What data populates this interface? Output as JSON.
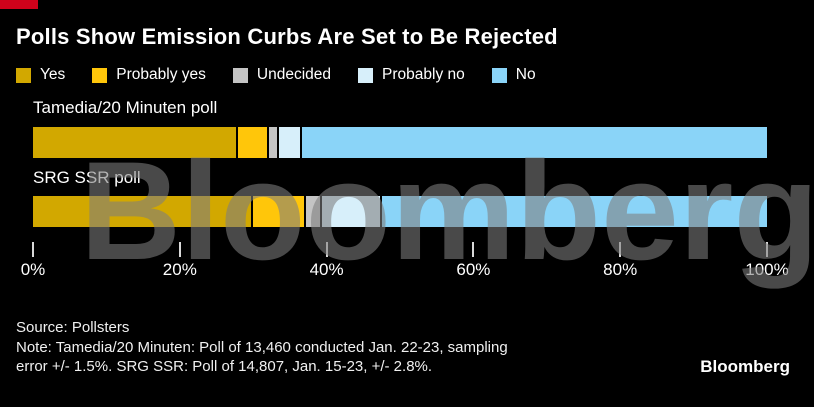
{
  "accent_color": "#d0021b",
  "background_color": "#000000",
  "watermark": "Bloomberg",
  "chart_data": {
    "type": "bar",
    "stacked": true,
    "orientation": "horizontal",
    "unit": "percent",
    "title": "Polls Show Emission Curbs Are Set to Be Rejected",
    "categories": [
      "Tamedia/20 Minuten poll",
      "SRG SSR poll"
    ],
    "series": [
      {
        "name": "Yes",
        "color": "#d2a800",
        "values": [
          28,
          30
        ]
      },
      {
        "name": "Probably yes",
        "color": "#ffc60a",
        "values": [
          4,
          7
        ]
      },
      {
        "name": "Undecided",
        "color": "#c4c4c4",
        "values": [
          1,
          2
        ]
      },
      {
        "name": "Probably no",
        "color": "#d7effa",
        "values": [
          3,
          8
        ]
      },
      {
        "name": "No",
        "color": "#8ad4f8",
        "values": [
          64,
          53
        ]
      }
    ],
    "x_axis": {
      "range": [
        0,
        100
      ],
      "tick_labels": [
        "0%",
        "20%",
        "40%",
        "60%",
        "80%",
        "100%"
      ]
    },
    "legend_position": "top",
    "grid": false
  },
  "footer": {
    "source": "Source: Pollsters",
    "note_lines": [
      "Note: Tamedia/20 Minuten: Poll of 13,460 conducted Jan. 22-23, sampling",
      "error +/- 1.5%. SRG SSR: Poll of 14,807, Jan. 15-23, +/- 2.8%."
    ],
    "logo": "Bloomberg"
  }
}
